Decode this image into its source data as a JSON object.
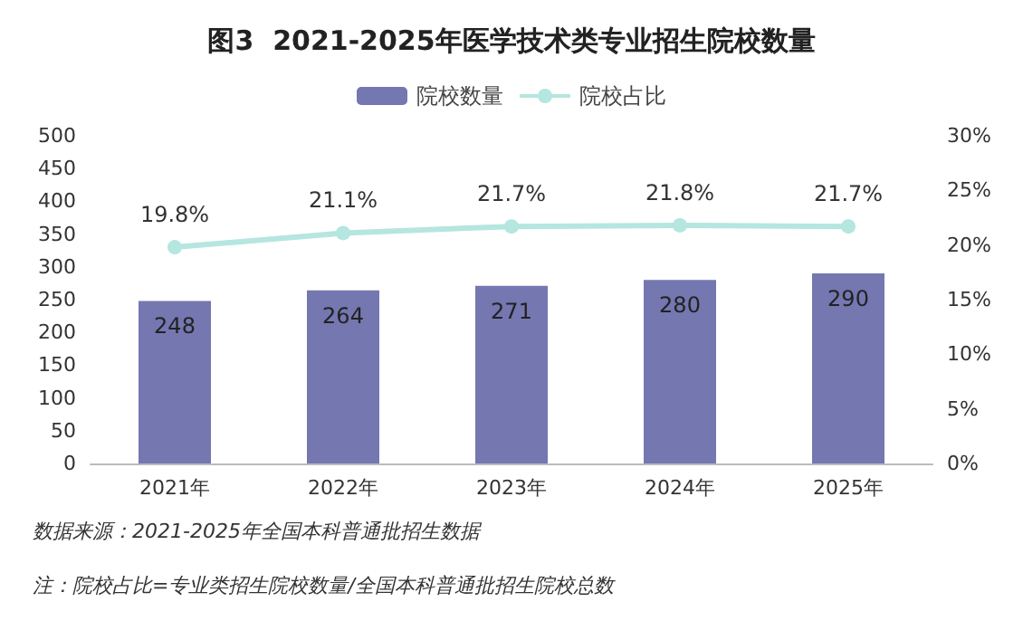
{
  "chart_data": {
    "type": "bar",
    "title": "图3  2021-2025年医学技术类专业招生院校数量",
    "categories": [
      "2021年",
      "2022年",
      "2023年",
      "2024年",
      "2025年"
    ],
    "series": [
      {
        "name": "院校数量",
        "color": "#7477b0",
        "values": [
          248,
          264,
          271,
          280,
          290
        ],
        "value_labels": [
          "248",
          "264",
          "271",
          "280",
          "290"
        ]
      },
      {
        "name": "院校占比",
        "type": "line",
        "axis": "y2",
        "color": "#b5e6df",
        "values": [
          19.8,
          21.1,
          21.7,
          21.8,
          21.7
        ],
        "value_labels": [
          "19.8%",
          "21.1%",
          "21.7%",
          "21.8%",
          "21.7%"
        ]
      }
    ],
    "ylim": [
      0,
      500
    ],
    "yticks": [
      0,
      50,
      100,
      150,
      200,
      250,
      300,
      350,
      400,
      450,
      500
    ],
    "y2lim": [
      0,
      30
    ],
    "y2ticks": [
      {
        "value": 0,
        "label": "0%"
      },
      {
        "value": 5,
        "label": "5%"
      },
      {
        "value": 10,
        "label": "10%"
      },
      {
        "value": 15,
        "label": "15%"
      },
      {
        "value": 20,
        "label": "20%"
      },
      {
        "value": 25,
        "label": "25%"
      },
      {
        "value": 30,
        "label": "30%"
      }
    ],
    "grid": false,
    "legend": "top",
    "marker": "circle",
    "annotations": [
      "数据来源：2021-2025年全国本科普通批招生数据",
      "注：院校占比=专业类招生院校数量/全国本科普通批招生院校总数"
    ]
  }
}
